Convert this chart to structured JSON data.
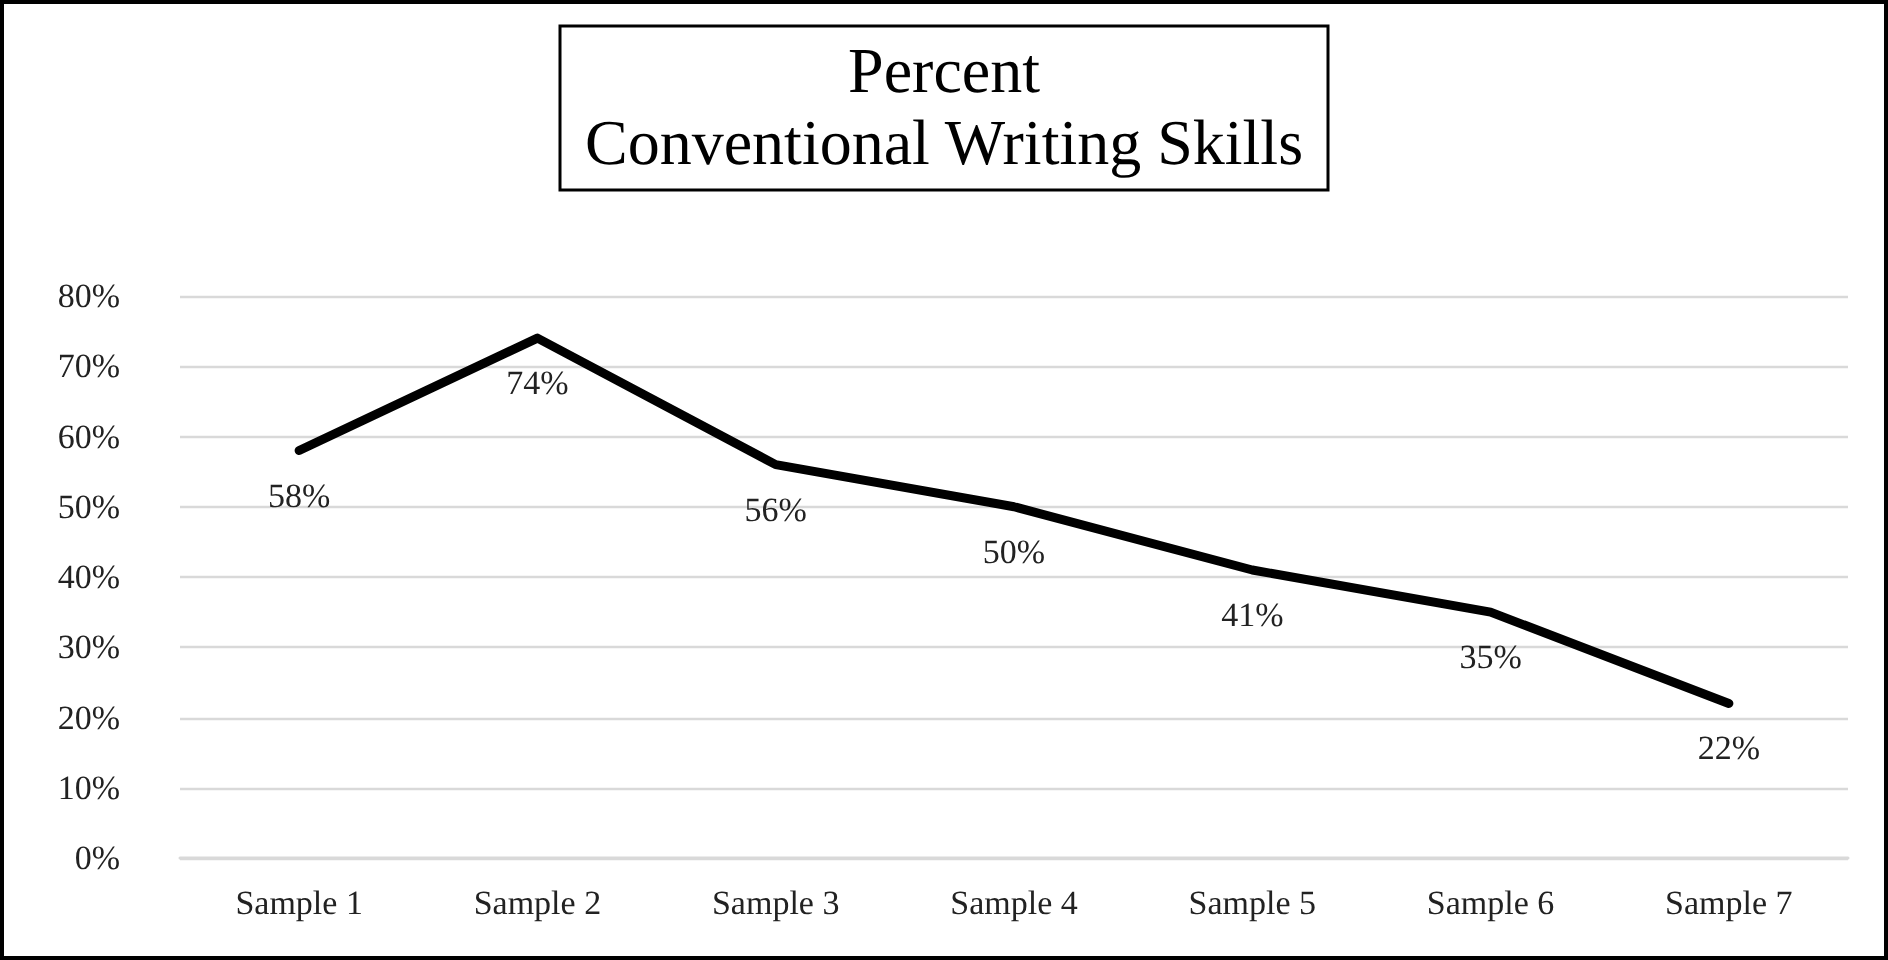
{
  "chart_data": {
    "type": "line",
    "title": "Percent\nConventional Writing Skills",
    "categories": [
      "Sample 1",
      "Sample 2",
      "Sample 3",
      "Sample 4",
      "Sample 5",
      "Sample 6",
      "Sample 7"
    ],
    "series": [
      {
        "color": "#000000",
        "values": [
          58,
          74,
          56,
          50,
          41,
          35,
          22
        ],
        "value_labels": [
          "58%",
          "74%",
          "56%",
          "50%",
          "41%",
          "35%",
          "22%"
        ]
      }
    ],
    "ylim": [
      0,
      80
    ],
    "yticks": [
      {
        "value": 0,
        "label": "0%"
      },
      {
        "value": 10,
        "label": "10%"
      },
      {
        "value": 20,
        "label": "20%"
      },
      {
        "value": 30,
        "label": "30%"
      },
      {
        "value": 40,
        "label": "40%"
      },
      {
        "value": 50,
        "label": "50%"
      },
      {
        "value": 60,
        "label": "60%"
      },
      {
        "value": 70,
        "label": "70%"
      },
      {
        "value": 80,
        "label": "80%"
      }
    ],
    "grid": "y",
    "marker": "none",
    "line_style": "solid"
  }
}
